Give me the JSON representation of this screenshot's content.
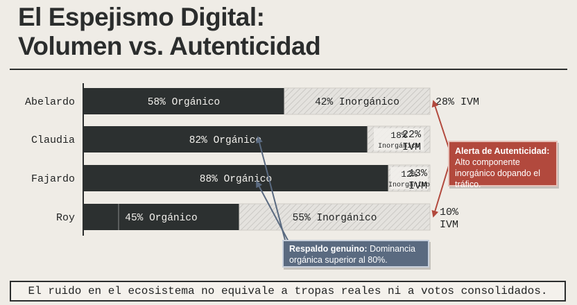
{
  "header": {
    "title_line1": "El Espejismo Digital:",
    "title_line2": "Volumen vs. Autenticidad"
  },
  "chart_data": {
    "type": "bar",
    "stacked": true,
    "orientation": "horizontal",
    "categories": [
      "Abelardo",
      "Claudia",
      "Fajardo",
      "Roy"
    ],
    "series": [
      {
        "values": [
          58,
          82,
          88,
          45
        ]
      },
      {
        "values": [
          42,
          18,
          12,
          55
        ]
      }
    ],
    "bar_labels": {
      "organic": [
        "58% Orgánico",
        "82% Orgánico",
        "88% Orgánico",
        "45% Orgánico"
      ],
      "inorganic_pct": [
        "42%",
        "18%",
        "12%",
        "55%"
      ],
      "inorganic_word": [
        "Inorgánico",
        "Inorgánico",
        "Inorgánico",
        "Inorgánico"
      ]
    },
    "ivm_values": [
      28,
      22,
      13,
      10
    ],
    "ivm_labels": [
      [
        "28% IVM"
      ],
      [
        "22%",
        "IVM"
      ],
      [
        "13%",
        "IVM"
      ],
      [
        "10%",
        "IVM"
      ]
    ],
    "colors": {
      "organic": "#2c3030",
      "inorganic": "#e4e2de",
      "hatch": "#b9b7b3",
      "red": "#b2493d",
      "blue": "#5a6a80"
    }
  },
  "callouts": {
    "red_title": "Alerta de Autenticidad:",
    "red_body": "Alto componente inorgánico dopando el tráfico.",
    "blue_title": "Respaldo genuino:",
    "blue_body": "Dominancia orgánica superior al 80%."
  },
  "footer": {
    "text": "El ruido en el ecosistema no equivale a tropas reales ni a votos consolidados."
  }
}
